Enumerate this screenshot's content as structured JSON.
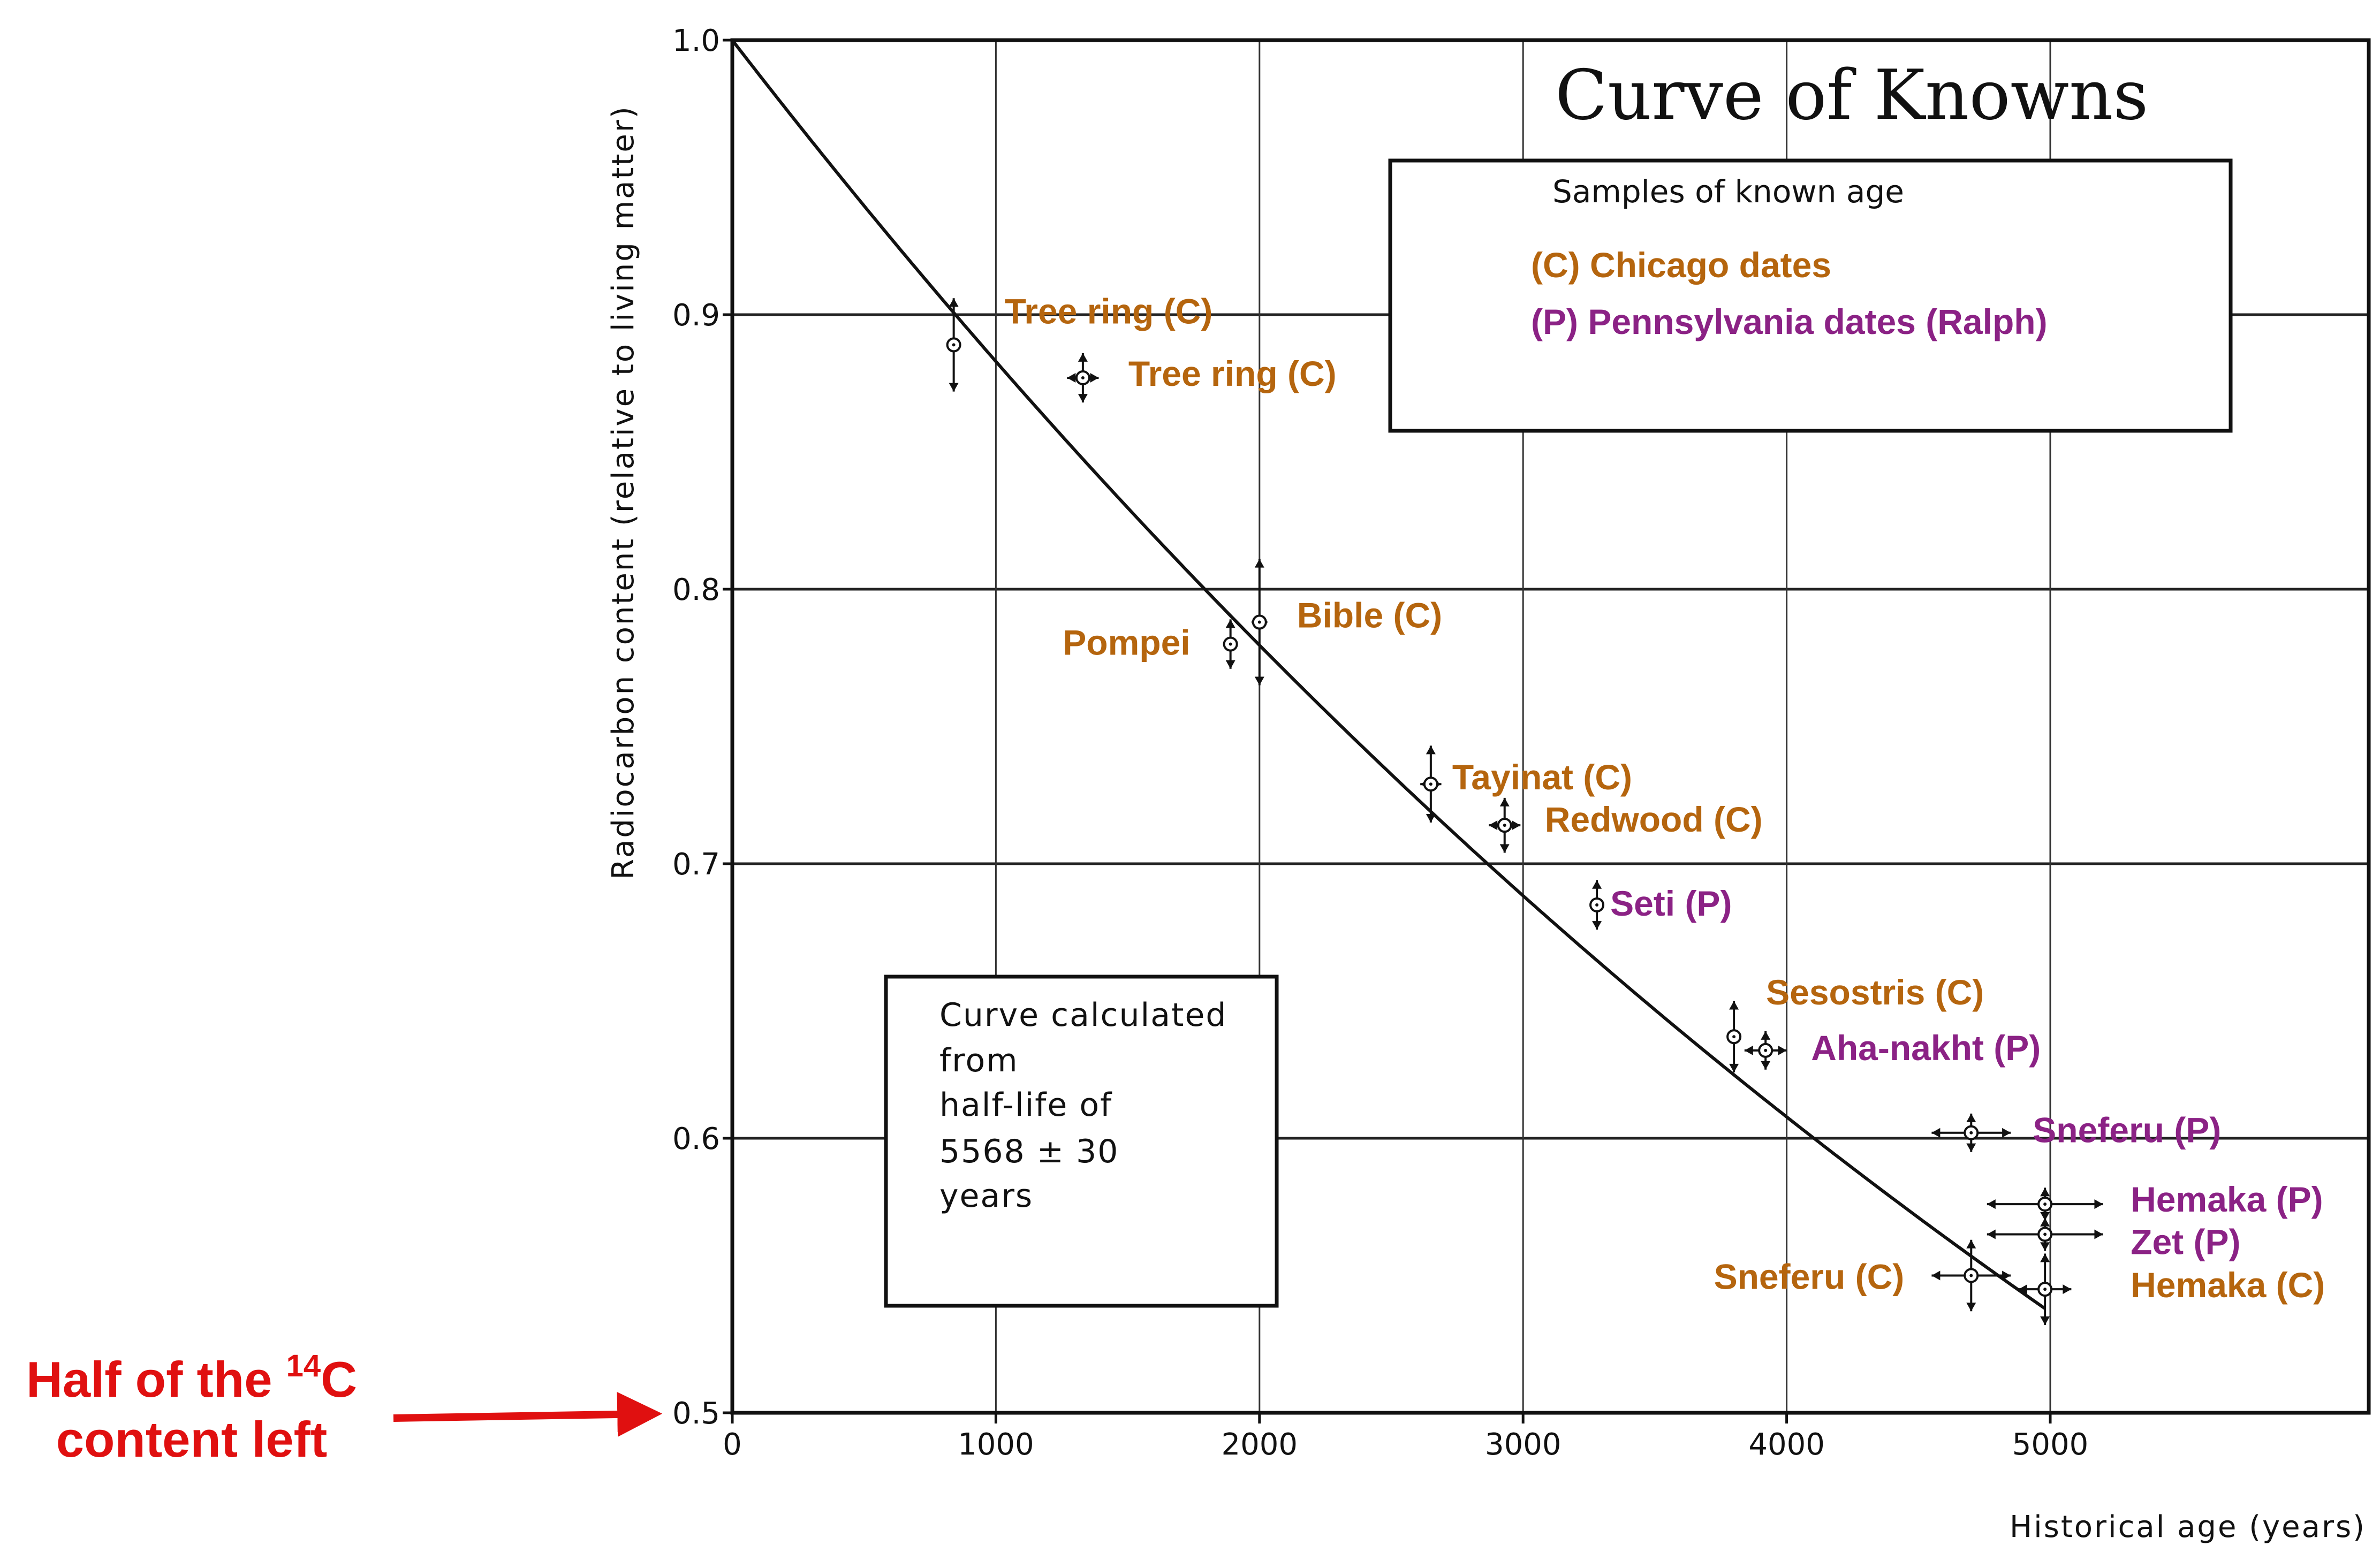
{
  "chart_data": {
    "type": "scatter",
    "title": "Curve of Knowns",
    "xlabel": "Historical age (years)",
    "ylabel": "Radiocarbon content (relative to living matter)",
    "xlim": [
      0,
      6200
    ],
    "ylim": [
      0.5,
      1.0
    ],
    "x_ticks": [
      0,
      1000,
      2000,
      3000,
      4000,
      5000
    ],
    "y_ticks": [
      0.5,
      0.6,
      0.7,
      0.8,
      0.9,
      1.0
    ],
    "y_tick_labels": [
      "0.5",
      "0.6",
      "0.7",
      "0.8",
      "0.9",
      "1.0"
    ],
    "grid": true,
    "curve": {
      "type": "exponential decay",
      "half_life": 5568,
      "start": 1.0
    },
    "legend": {
      "heading": "Samples of known age",
      "entries": [
        {
          "code": "C",
          "label": "(C) Chicago dates",
          "color": "#b5650e"
        },
        {
          "code": "P",
          "label": "(P) Pennsylvania dates (Ralph)",
          "color": "#8b2285"
        }
      ]
    },
    "curve_note": [
      "Curve calculated",
      "from",
      "half-life of",
      "5568 ± 30",
      "years"
    ],
    "points": [
      {
        "label": "Tree ring (C)",
        "x": 840,
        "y": 0.889,
        "xerr": 0,
        "yerr": 0.017,
        "lab": "C"
      },
      {
        "label": "Tree ring (C)",
        "x": 1330,
        "y": 0.877,
        "xerr": 60,
        "yerr": 0.009,
        "lab": "C"
      },
      {
        "label": "Pompei",
        "x": 1890,
        "y": 0.78,
        "xerr": 0,
        "yerr": 0.009,
        "lab": "C"
      },
      {
        "label": "Bible (C)",
        "x": 2000,
        "y": 0.788,
        "xerr": 30,
        "yerr": 0.023,
        "lab": "C"
      },
      {
        "label": "Tayinat (C)",
        "x": 2650,
        "y": 0.729,
        "xerr": 40,
        "yerr": 0.014,
        "lab": "C"
      },
      {
        "label": "Redwood (C)",
        "x": 2930,
        "y": 0.714,
        "xerr": 60,
        "yerr": 0.01,
        "lab": "C"
      },
      {
        "label": "Seti (P)",
        "x": 3280,
        "y": 0.685,
        "xerr": 0,
        "yerr": 0.009,
        "lab": "P"
      },
      {
        "label": "Sesostris (C)",
        "x": 3800,
        "y": 0.637,
        "xerr": 0,
        "yerr": 0.013,
        "lab": "C"
      },
      {
        "label": "Aha-nakht (P)",
        "x": 3920,
        "y": 0.632,
        "xerr": 80,
        "yerr": 0.007,
        "lab": "P"
      },
      {
        "label": "Sneferu (P)",
        "x": 4700,
        "y": 0.602,
        "xerr": 150,
        "yerr": 0.007,
        "lab": "P"
      },
      {
        "label": "Hemaka (P)",
        "x": 4980,
        "y": 0.576,
        "xerr": 220,
        "yerr": 0.006,
        "lab": "P"
      },
      {
        "label": "Zet (P)",
        "x": 4980,
        "y": 0.565,
        "xerr": 220,
        "yerr": 0.006,
        "lab": "P"
      },
      {
        "label": "Sneferu (C)",
        "x": 4700,
        "y": 0.55,
        "xerr": 150,
        "yerr": 0.013,
        "lab": "C"
      },
      {
        "label": "Hemaka (C)",
        "x": 4980,
        "y": 0.545,
        "xerr": 100,
        "yerr": 0.013,
        "lab": "C"
      }
    ]
  },
  "annotation": {
    "lines": [
      "Half of the",
      "content left"
    ],
    "isotope_mass": "14",
    "isotope_symbol": "C",
    "color": "#e01010"
  }
}
